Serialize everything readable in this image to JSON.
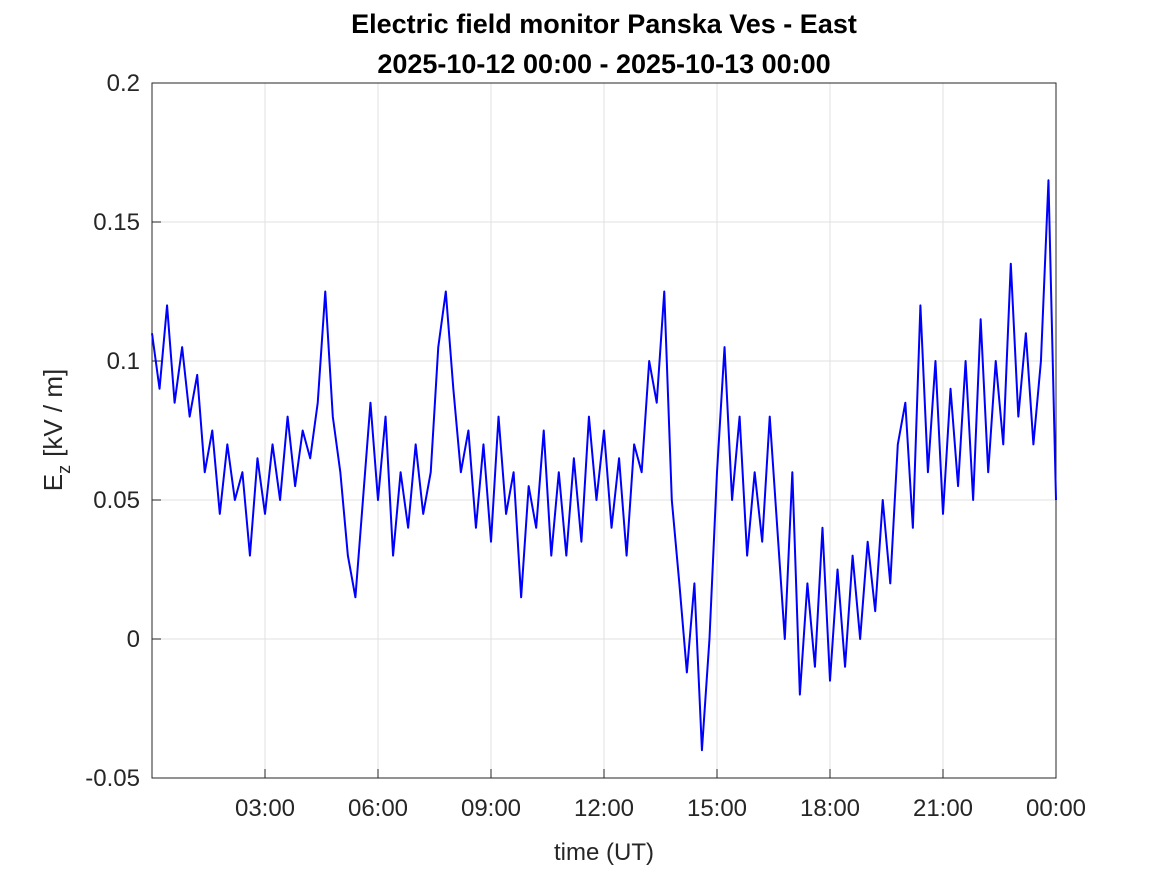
{
  "chart_data": {
    "type": "line",
    "title": [
      "Electric field monitor Panska Ves - East",
      "2025-10-12 00:00 - 2025-10-13 00:00"
    ],
    "x_label": "time (UT)",
    "y_label": {
      "symbol": "E",
      "subscript": "z",
      "unit": "[kV / m]"
    },
    "xlim": [
      0,
      24
    ],
    "xticks": [
      {
        "value": 3,
        "label": "03:00"
      },
      {
        "value": 6,
        "label": "06:00"
      },
      {
        "value": 9,
        "label": "09:00"
      },
      {
        "value": 12,
        "label": "12:00"
      },
      {
        "value": 15,
        "label": "15:00"
      },
      {
        "value": 18,
        "label": "18:00"
      },
      {
        "value": 21,
        "label": "21:00"
      },
      {
        "value": 24,
        "label": "00:00"
      }
    ],
    "ylim": [
      -0.05,
      0.2
    ],
    "yticks": [
      -0.05,
      0,
      0.05,
      0.1,
      0.15,
      0.2
    ],
    "grid": true,
    "x": [
      0,
      0.2,
      0.4,
      0.6,
      0.8,
      1,
      1.2,
      1.4,
      1.6,
      1.8,
      2,
      2.2,
      2.4,
      2.6,
      2.8,
      3,
      3.2,
      3.4,
      3.6,
      3.8,
      4,
      4.2,
      4.4,
      4.6,
      4.8,
      5,
      5.2,
      5.4,
      5.6,
      5.8,
      6,
      6.2,
      6.4,
      6.6,
      6.8,
      7,
      7.2,
      7.4,
      7.6,
      7.8,
      8,
      8.2,
      8.4,
      8.6,
      8.8,
      9,
      9.2,
      9.4,
      9.6,
      9.8,
      10,
      10.2,
      10.4,
      10.6,
      10.8,
      11,
      11.2,
      11.4,
      11.6,
      11.8,
      12,
      12.2,
      12.4,
      12.6,
      12.8,
      13,
      13.2,
      13.4,
      13.6,
      13.8,
      14,
      14.2,
      14.4,
      14.6,
      14.8,
      15,
      15.2,
      15.4,
      15.6,
      15.8,
      16,
      16.2,
      16.4,
      16.6,
      16.8,
      17,
      17.2,
      17.4,
      17.6,
      17.8,
      18,
      18.2,
      18.4,
      18.6,
      18.8,
      19,
      19.2,
      19.4,
      19.6,
      19.8,
      20,
      20.2,
      20.4,
      20.6,
      20.8,
      21,
      21.2,
      21.4,
      21.6,
      21.8,
      22,
      22.2,
      22.4,
      22.6,
      22.8,
      23,
      23.2,
      23.4,
      23.6,
      23.8,
      24
    ],
    "series": [
      {
        "color": "#0000ff",
        "values": [
          0.11,
          0.09,
          0.12,
          0.085,
          0.105,
          0.08,
          0.095,
          0.06,
          0.075,
          0.045,
          0.07,
          0.05,
          0.06,
          0.03,
          0.065,
          0.045,
          0.07,
          0.05,
          0.08,
          0.055,
          0.075,
          0.065,
          0.085,
          0.125,
          0.08,
          0.06,
          0.03,
          0.015,
          0.05,
          0.085,
          0.05,
          0.08,
          0.03,
          0.06,
          0.04,
          0.07,
          0.045,
          0.06,
          0.105,
          0.125,
          0.09,
          0.06,
          0.075,
          0.04,
          0.07,
          0.035,
          0.08,
          0.045,
          0.06,
          0.015,
          0.055,
          0.04,
          0.075,
          0.03,
          0.06,
          0.03,
          0.065,
          0.035,
          0.08,
          0.05,
          0.075,
          0.04,
          0.065,
          0.03,
          0.07,
          0.06,
          0.1,
          0.085,
          0.125,
          0.05,
          0.02,
          -0.012,
          0.02,
          -0.04,
          0,
          0.06,
          0.105,
          0.05,
          0.08,
          0.03,
          0.06,
          0.035,
          0.08,
          0.04,
          0,
          0.06,
          -0.02,
          0.02,
          -0.01,
          0.04,
          -0.015,
          0.025,
          -0.01,
          0.03,
          0,
          0.035,
          0.01,
          0.05,
          0.02,
          0.07,
          0.085,
          0.04,
          0.12,
          0.06,
          0.1,
          0.045,
          0.09,
          0.055,
          0.1,
          0.05,
          0.115,
          0.06,
          0.1,
          0.07,
          0.135,
          0.08,
          0.11,
          0.07,
          0.1,
          0.165,
          0.05
        ]
      }
    ]
  }
}
